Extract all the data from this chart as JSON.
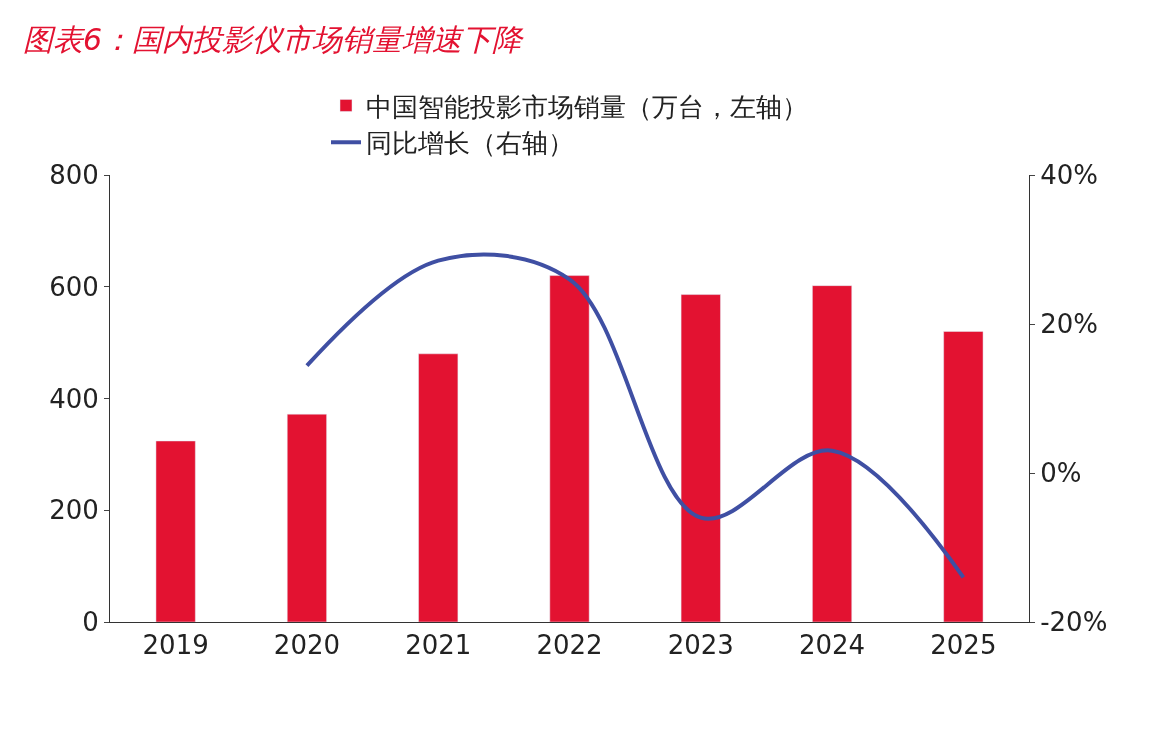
{
  "chart_data": {
    "type": "bar",
    "title": "图表6：国内投影仪市场销量增速下降",
    "categories": [
      "2019",
      "2020",
      "2021",
      "2022",
      "2023",
      "2024",
      "2025"
    ],
    "series": [
      {
        "name": "中国智能投影市场销量（万台，左轴）",
        "color": "#e31231",
        "values": [
          324,
          372,
          480,
          620,
          586,
          602,
          520
        ]
      },
      {
        "name": "同比增长（右轴）",
        "type": "line",
        "axis": "y2",
        "color": "#3f4fa3",
        "values": [
          null,
          14.4,
          28.5,
          26,
          -6,
          3,
          -14
        ]
      }
    ],
    "ylim": [
      0,
      800
    ],
    "yticks": [
      0,
      200,
      400,
      600,
      800
    ],
    "y2lim": [
      -20,
      40
    ],
    "y2ticks": [
      {
        "value": -20,
        "label": "-20%"
      },
      {
        "value": 0,
        "label": "0%"
      },
      {
        "value": 20,
        "label": "20%"
      },
      {
        "value": 40,
        "label": "40%"
      }
    ],
    "legend": "top",
    "marker": "none"
  }
}
